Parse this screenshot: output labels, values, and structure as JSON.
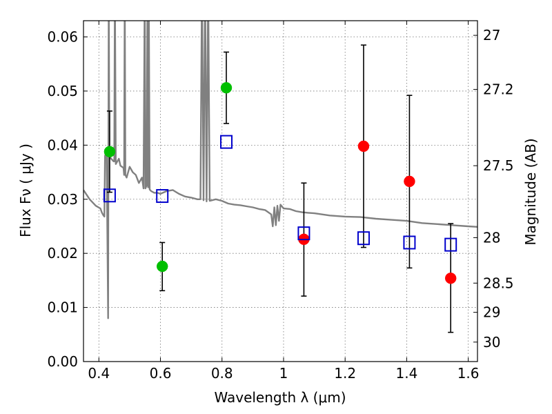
{
  "chart_data": {
    "type": "scatter",
    "title": "",
    "xlabel": "Wavelength  λ (μm)",
    "ylabel": "Flux  Fν  ( μJy )",
    "ylabel_right": "Magnitude (AB)",
    "xlim": [
      0.35,
      1.63
    ],
    "ylim": [
      0,
      0.063
    ],
    "grid": true,
    "x_ticks": [
      0.4,
      0.6,
      0.8,
      1.0,
      1.2,
      1.4,
      1.6
    ],
    "x_tick_labels": [
      "0.4",
      "0.6",
      "0.8",
      "1",
      "1.2",
      "1.4",
      "1.6"
    ],
    "y_ticks": [
      0,
      0.01,
      0.02,
      0.03,
      0.04,
      0.05,
      0.06
    ],
    "y_tick_labels": [
      "0.00",
      "0.01",
      "0.02",
      "0.03",
      "0.04",
      "0.05",
      "0.06"
    ],
    "y2_ticks": [
      {
        "flux": 0.0603,
        "label": "27"
      },
      {
        "flux": 0.0503,
        "label": "27.2"
      },
      {
        "flux": 0.0362,
        "label": "27.5"
      },
      {
        "flux": 0.0229,
        "label": "28"
      },
      {
        "flux": 0.0145,
        "label": "28.5"
      },
      {
        "flux": 0.0091,
        "label": "29"
      },
      {
        "flux": 0.0036,
        "label": "30"
      }
    ],
    "series": [
      {
        "marker": "circle",
        "color": "#00bf00",
        "points": [
          {
            "x": 0.435,
            "y": 0.0388,
            "err_lo": 0.0313,
            "err_hi": 0.0463
          },
          {
            "x": 0.606,
            "y": 0.0176,
            "err_lo": 0.0131,
            "err_hi": 0.022
          },
          {
            "x": 0.814,
            "y": 0.0506,
            "err_lo": 0.044,
            "err_hi": 0.0572
          }
        ]
      },
      {
        "marker": "circle",
        "color": "#ff0000",
        "points": [
          {
            "x": 1.066,
            "y": 0.0226,
            "err_lo": 0.0121,
            "err_hi": 0.033
          },
          {
            "x": 1.26,
            "y": 0.0398,
            "err_lo": 0.0211,
            "err_hi": 0.0585
          },
          {
            "x": 1.409,
            "y": 0.0333,
            "err_lo": 0.0173,
            "err_hi": 0.0492
          },
          {
            "x": 1.543,
            "y": 0.0154,
            "err_lo": 0.0054,
            "err_hi": 0.0255
          }
        ]
      },
      {
        "marker": "square",
        "color": "#0000cc",
        "points": [
          {
            "x": 0.435,
            "y": 0.0307
          },
          {
            "x": 0.606,
            "y": 0.0306
          },
          {
            "x": 0.814,
            "y": 0.0406
          },
          {
            "x": 1.066,
            "y": 0.0237
          },
          {
            "x": 1.26,
            "y": 0.0228
          },
          {
            "x": 1.409,
            "y": 0.022
          },
          {
            "x": 1.543,
            "y": 0.0216
          }
        ]
      }
    ],
    "sed_curve": {
      "color": "#808080",
      "points": [
        [
          0.35,
          0.0317
        ],
        [
          0.37,
          0.03
        ],
        [
          0.39,
          0.0288
        ],
        [
          0.405,
          0.0283
        ],
        [
          0.41,
          0.0275
        ],
        [
          0.415,
          0.027
        ],
        [
          0.418,
          0.0268
        ],
        [
          0.42,
          0.038
        ],
        [
          0.425,
          0.039
        ],
        [
          0.43,
          0.008
        ],
        [
          0.432,
          0.07
        ],
        [
          0.434,
          0.038
        ],
        [
          0.44,
          0.0375
        ],
        [
          0.448,
          0.037
        ],
        [
          0.45,
          0.037
        ],
        [
          0.452,
          0.07
        ],
        [
          0.455,
          0.0365
        ],
        [
          0.465,
          0.0375
        ],
        [
          0.47,
          0.0362
        ],
        [
          0.48,
          0.0358
        ],
        [
          0.482,
          0.0345
        ],
        [
          0.484,
          0.07
        ],
        [
          0.486,
          0.0345
        ],
        [
          0.49,
          0.034
        ],
        [
          0.5,
          0.036
        ],
        [
          0.51,
          0.035
        ],
        [
          0.52,
          0.0345
        ],
        [
          0.53,
          0.033
        ],
        [
          0.54,
          0.034
        ],
        [
          0.545,
          0.032
        ],
        [
          0.549,
          0.07
        ],
        [
          0.551,
          0.032
        ],
        [
          0.555,
          0.0325
        ],
        [
          0.558,
          0.07
        ],
        [
          0.56,
          0.0322
        ],
        [
          0.562,
          0.07
        ],
        [
          0.565,
          0.0318
        ],
        [
          0.57,
          0.0315
        ],
        [
          0.58,
          0.0312
        ],
        [
          0.59,
          0.0312
        ],
        [
          0.6,
          0.031
        ],
        [
          0.62,
          0.0315
        ],
        [
          0.64,
          0.0317
        ],
        [
          0.66,
          0.031
        ],
        [
          0.68,
          0.0305
        ],
        [
          0.7,
          0.0303
        ],
        [
          0.72,
          0.03
        ],
        [
          0.73,
          0.03
        ],
        [
          0.735,
          0.07
        ],
        [
          0.74,
          0.0298
        ],
        [
          0.745,
          0.07
        ],
        [
          0.75,
          0.0296
        ],
        [
          0.755,
          0.07
        ],
        [
          0.76,
          0.0297
        ],
        [
          0.78,
          0.03
        ],
        [
          0.8,
          0.0297
        ],
        [
          0.82,
          0.0292
        ],
        [
          0.84,
          0.029
        ],
        [
          0.86,
          0.0289
        ],
        [
          0.88,
          0.0287
        ],
        [
          0.9,
          0.0285
        ],
        [
          0.92,
          0.0282
        ],
        [
          0.94,
          0.028
        ],
        [
          0.96,
          0.0272
        ],
        [
          0.965,
          0.025
        ],
        [
          0.97,
          0.0285
        ],
        [
          0.975,
          0.0252
        ],
        [
          0.98,
          0.0288
        ],
        [
          0.985,
          0.026
        ],
        [
          0.99,
          0.029
        ],
        [
          1.0,
          0.0283
        ],
        [
          1.02,
          0.0282
        ],
        [
          1.04,
          0.0278
        ],
        [
          1.06,
          0.0276
        ],
        [
          1.08,
          0.0275
        ],
        [
          1.1,
          0.0274
        ],
        [
          1.15,
          0.027
        ],
        [
          1.2,
          0.0268
        ],
        [
          1.25,
          0.0267
        ],
        [
          1.3,
          0.0264
        ],
        [
          1.35,
          0.0262
        ],
        [
          1.4,
          0.026
        ],
        [
          1.45,
          0.0256
        ],
        [
          1.5,
          0.0254
        ],
        [
          1.55,
          0.0252
        ],
        [
          1.6,
          0.025
        ],
        [
          1.63,
          0.0249
        ]
      ]
    }
  }
}
